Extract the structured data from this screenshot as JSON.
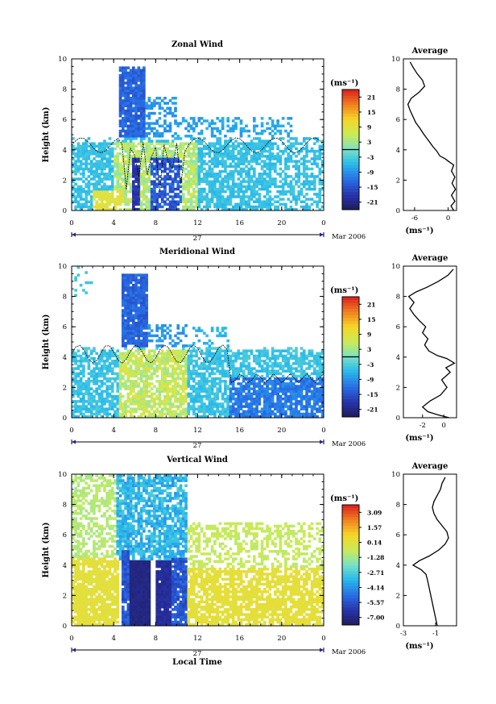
{
  "figure": {
    "xlabel": "Local Time",
    "date_label": "27",
    "month_label": "Mar 2006",
    "colorbar_unit": "(ms⁻¹)",
    "average_unit": "(ms⁻¹)"
  },
  "chart_data": [
    {
      "type": "heatmap",
      "title": "Zonal Wind",
      "ylabel": "Height (km)",
      "xlim": [
        0,
        24
      ],
      "ylim": [
        0,
        10
      ],
      "x_ticks": [
        "0",
        "4",
        "8",
        "12",
        "16",
        "20",
        "0"
      ],
      "y_ticks": [
        "0",
        "2",
        "4",
        "6",
        "8",
        "10"
      ],
      "colorbar_ticks": [
        "21",
        "15",
        "9",
        "3",
        "-3",
        "-9",
        "-15",
        "-21"
      ],
      "colorbar_range": [
        -24,
        24
      ],
      "zero_contour": true
    },
    {
      "type": "line",
      "title": "Average",
      "xunit": "(ms⁻¹)",
      "xlim": [
        -8,
        1.5
      ],
      "ylim": [
        0,
        10
      ],
      "x_ticks": [
        "-6",
        "0"
      ],
      "y_ticks": [
        "0",
        "2",
        "4",
        "6",
        "8",
        "10"
      ],
      "points": [
        [
          1.0,
          0.0
        ],
        [
          0.5,
          0.3
        ],
        [
          1.2,
          0.6
        ],
        [
          0.6,
          1.0
        ],
        [
          1.3,
          1.4
        ],
        [
          0.7,
          1.8
        ],
        [
          1.2,
          2.2
        ],
        [
          0.6,
          2.6
        ],
        [
          1.0,
          3.0
        ],
        [
          0.2,
          3.2
        ],
        [
          -0.5,
          3.4
        ],
        [
          -1.5,
          3.6
        ],
        [
          -2.0,
          3.9
        ],
        [
          -2.7,
          4.2
        ],
        [
          -3.5,
          4.6
        ],
        [
          -4.3,
          5.0
        ],
        [
          -5.0,
          5.4
        ],
        [
          -5.8,
          5.8
        ],
        [
          -6.3,
          6.2
        ],
        [
          -6.8,
          6.6
        ],
        [
          -7.2,
          7.0
        ],
        [
          -6.6,
          7.4
        ],
        [
          -5.2,
          7.8
        ],
        [
          -4.2,
          8.2
        ],
        [
          -4.6,
          8.6
        ],
        [
          -5.5,
          9.0
        ],
        [
          -6.2,
          9.4
        ],
        [
          -6.8,
          9.8
        ]
      ]
    },
    {
      "type": "heatmap",
      "title": "Meridional Wind",
      "ylabel": "Height (km)",
      "xlim": [
        0,
        24
      ],
      "ylim": [
        0,
        10
      ],
      "x_ticks": [
        "0",
        "4",
        "8",
        "12",
        "16",
        "20",
        "0"
      ],
      "y_ticks": [
        "0",
        "2",
        "4",
        "6",
        "8",
        "10"
      ],
      "colorbar_ticks": [
        "21",
        "15",
        "9",
        "3",
        "-3",
        "-9",
        "-15",
        "-21"
      ],
      "colorbar_range": [
        -24,
        24
      ],
      "zero_contour": true
    },
    {
      "type": "line",
      "title": "Average",
      "xunit": "(ms⁻¹)",
      "xlim": [
        -3.8,
        1.2
      ],
      "ylim": [
        0,
        10
      ],
      "x_ticks": [
        "-2",
        "0"
      ],
      "y_ticks": [
        "0",
        "2",
        "4",
        "6",
        "8",
        "10"
      ],
      "points": [
        [
          0.5,
          0.0
        ],
        [
          -0.6,
          0.2
        ],
        [
          -1.5,
          0.4
        ],
        [
          -2.0,
          0.7
        ],
        [
          -1.3,
          1.1
        ],
        [
          -0.3,
          1.5
        ],
        [
          0.3,
          2.0
        ],
        [
          -0.2,
          2.5
        ],
        [
          0.6,
          3.0
        ],
        [
          0.2,
          3.3
        ],
        [
          1.0,
          3.6
        ],
        [
          0.3,
          3.9
        ],
        [
          -0.6,
          4.1
        ],
        [
          -1.4,
          4.4
        ],
        [
          -1.8,
          4.8
        ],
        [
          -1.5,
          5.2
        ],
        [
          -2.0,
          5.6
        ],
        [
          -1.7,
          6.0
        ],
        [
          -2.3,
          6.4
        ],
        [
          -2.8,
          6.8
        ],
        [
          -3.2,
          7.2
        ],
        [
          -2.8,
          7.6
        ],
        [
          -3.3,
          8.0
        ],
        [
          -2.6,
          8.3
        ],
        [
          -1.6,
          8.6
        ],
        [
          -0.5,
          9.0
        ],
        [
          0.4,
          9.4
        ],
        [
          0.9,
          9.8
        ]
      ]
    },
    {
      "type": "heatmap",
      "title": "Vertical Wind",
      "ylabel": "Height (km)",
      "xlabel": "Local Time",
      "xlim": [
        0,
        24
      ],
      "ylim": [
        0,
        10
      ],
      "x_ticks": [
        "0",
        "4",
        "8",
        "12",
        "16",
        "20",
        "0"
      ],
      "y_ticks": [
        "0",
        "2",
        "4",
        "6",
        "8",
        "10"
      ],
      "colorbar_ticks": [
        "3.09",
        "1.57",
        "0.14",
        "-1.28",
        "-2.71",
        "-4.14",
        "-5.57",
        "-7.00"
      ],
      "colorbar_range": [
        -7.7,
        3.8
      ],
      "zero_contour": false
    },
    {
      "type": "line",
      "title": "Average",
      "xunit": "(ms⁻¹)",
      "xlim": [
        -3.0,
        0.3
      ],
      "ylim": [
        0,
        10
      ],
      "x_ticks": [
        "-3",
        "-1"
      ],
      "y_ticks": [
        "0",
        "2",
        "4",
        "6",
        "8",
        "10"
      ],
      "points": [
        [
          -0.9,
          0.0
        ],
        [
          -1.0,
          0.5
        ],
        [
          -1.1,
          1.0
        ],
        [
          -1.2,
          1.5
        ],
        [
          -1.3,
          2.0
        ],
        [
          -1.4,
          2.5
        ],
        [
          -1.5,
          3.0
        ],
        [
          -1.6,
          3.4
        ],
        [
          -1.9,
          3.7
        ],
        [
          -2.4,
          4.0
        ],
        [
          -2.0,
          4.3
        ],
        [
          -1.4,
          4.6
        ],
        [
          -0.8,
          5.0
        ],
        [
          -0.4,
          5.4
        ],
        [
          -0.2,
          5.8
        ],
        [
          -0.3,
          6.2
        ],
        [
          -0.6,
          6.6
        ],
        [
          -0.9,
          7.0
        ],
        [
          -1.1,
          7.4
        ],
        [
          -1.2,
          7.8
        ],
        [
          -1.1,
          8.2
        ],
        [
          -0.9,
          8.6
        ],
        [
          -0.7,
          9.0
        ],
        [
          -0.6,
          9.4
        ],
        [
          -0.4,
          9.8
        ]
      ]
    }
  ]
}
